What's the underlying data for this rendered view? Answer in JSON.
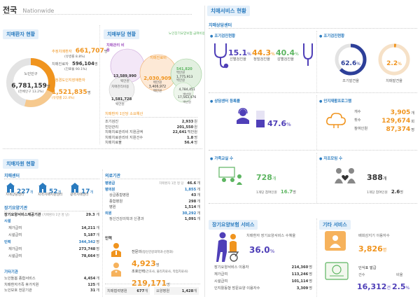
{
  "title": {
    "main": "전국",
    "sub": "Nationwide"
  },
  "patients": {
    "header": "치매환자 현황",
    "est_label": "추정치매환자",
    "est_value": "661,707",
    "est_unit": "명",
    "est_rate": "(유병률 8.8%)",
    "treat_label": "치매진료자",
    "treat_value": "596,104",
    "treat_unit": "명",
    "treat_rate": "(진료율 90.1%)",
    "elderly_label": "노인인구",
    "elderly_value": "6,781,159",
    "elderly_unit": "명",
    "elderly_rate": "(전체인구 13.2%)",
    "mci_label": "추정경도인지장애환자",
    "mci_value": "1,521,835",
    "mci_unit": "명",
    "mci_rate": "(유병률 22.4%)"
  },
  "burden": {
    "header": "치매부담 현황",
    "mgmt_label": "치매관리 비용",
    "mgmt_value": "13,589,990",
    "mgmt_unit": "백만원",
    "care_label": "치매관리비용",
    "care_value": "1,581,728",
    "care_unit": "백만원",
    "med_label": "치매진료비",
    "med_value": "2,030,909",
    "med_unit": "백만원",
    "med2_value": "3,406,972",
    "med2_unit": "백만원",
    "ltc_label": "노인장기요양보험 급여비용",
    "ltc_value": "541,820",
    "ltc_unit": "백만원",
    "ltc2_value": "1,775,913",
    "ltc2_unit": "백만원",
    "other_value": "4,784,451",
    "other_unit": "백만원",
    "other2_value": "17,563,476",
    "other2_unit": "백만원",
    "per_head_title": "치매환자 1인당 소요예산",
    "rows": [
      {
        "label": "조기검진",
        "value": "2,933",
        "unit": "원"
      },
      {
        "label": "진단관리",
        "value": "201,550",
        "unit": "원"
      },
      {
        "label": "치매치료관리비 지원금액",
        "value": "22,641",
        "unit": "백만원"
      },
      {
        "label": "치매치료관리비 지원건수",
        "value": "1.8",
        "unit": "명"
      },
      {
        "label": "치매치료불",
        "value": "56.4",
        "unit": "명"
      }
    ]
  },
  "resources": {
    "header": "치매자원 현황",
    "center_title": "치매센터",
    "centers": [
      {
        "value": "227",
        "unit": "개",
        "label": "치매상담센터"
      },
      {
        "value": "52",
        "unit": "개",
        "label": "지역치매지원센터"
      },
      {
        "value": "17",
        "unit": "개",
        "label": "광역치매센터"
      }
    ],
    "ltc_title": "장기요양기관",
    "ltc_total_label": "장기요양서비스제공기관",
    "ltc_total_note": "(치매환자 1만 명 당)",
    "ltc_total_value": "29.3",
    "ltc_total_unit": "개",
    "ltc_rows": [
      {
        "label": "시설",
        "value": "",
        "unit": "",
        "head": true
      },
      {
        "label": "재가급여",
        "value": "14,211",
        "unit": "개"
      },
      {
        "label": "시설급여",
        "value": "5,187",
        "unit": "개"
      },
      {
        "label": "인력",
        "value": "344,342",
        "unit": "명",
        "head": true
      },
      {
        "label": "재가급여",
        "value": "273,748",
        "unit": "명"
      },
      {
        "label": "시설급여",
        "value": "78,664",
        "unit": "명"
      }
    ],
    "other_title": "기타기관",
    "other_rows": [
      {
        "label": "노인돌봄 종합서비스",
        "value": "4,454",
        "unit": "개"
      },
      {
        "label": "치매환자가족 휴가지원",
        "value": "125",
        "unit": "개"
      },
      {
        "label": "노인보호 전문기관",
        "value": "31",
        "unit": "개"
      }
    ]
  },
  "medical": {
    "title": "의료기관",
    "rows": [
      {
        "label": "병원급",
        "value": "",
        "unit": "",
        "note": "치매환자 1천 명 당",
        "value2": "46.6",
        "unit2": "개",
        "head": true
      },
      {
        "label": "병의원",
        "value": "1,855",
        "unit": "개",
        "head": true
      },
      {
        "label": "상급종합병원",
        "value": "43",
        "unit": "개"
      },
      {
        "label": "종합병원",
        "value": "298",
        "unit": "개"
      },
      {
        "label": "병원",
        "value": "1,514",
        "unit": "개"
      },
      {
        "label": "의원",
        "value": "30,292",
        "unit": "개",
        "head": true
      },
      {
        "label": "정신건강의학과 신경과",
        "value": "1,091",
        "unit": "개"
      }
    ],
    "staff_title": "인력",
    "spec_label": "전문의",
    "spec_note": "(정신건강의학과·신경과)",
    "spec_value": "4,923",
    "spec_unit": "명",
    "helper_label": "조호인력",
    "helper_note": "(간호사, 물리치료사, 작업치료사)",
    "helper_value": "219,171",
    "helper_unit": "명",
    "bottom": [
      {
        "label": "치매협력병원",
        "value": "677",
        "unit": "개"
      },
      {
        "label": "요양병원",
        "value": "1,428",
        "unit": "개"
      }
    ]
  },
  "services": {
    "header": "치매서비스 현황",
    "counsel_title": "치매상담센터",
    "screen": {
      "title": "조기검진현황",
      "items": [
        {
          "value": "15.1",
          "unit": "%",
          "label": "선별검진율"
        },
        {
          "value": "44.3",
          "unit": "%",
          "label": "정밀검진율"
        },
        {
          "value": "40.4",
          "unit": "%",
          "label": "감별검진율"
        }
      ]
    },
    "early": {
      "title": "조기검진현황",
      "rate1_value": "62.6",
      "rate1_unit": "%",
      "rate1_label": "조기발견율",
      "rate1_pct": 62.6,
      "rate2_value": "2.2",
      "rate2_unit": "%",
      "rate2_label": "치매발견율",
      "rate2_pct": 2.2
    },
    "register": {
      "title": "상담센터 등록률",
      "value": "47.6",
      "unit": "%"
    },
    "rehab": {
      "title": "인지재활프로그램",
      "rows": [
        {
          "label": "개수",
          "value": "3,905",
          "unit": "개"
        },
        {
          "label": "횟수",
          "value": "129,674",
          "unit": "회"
        },
        {
          "label": "참여인원",
          "value": "87,374",
          "unit": "명"
        }
      ]
    },
    "family": {
      "title": "가족교실 수",
      "value": "728",
      "unit": "개",
      "note": "1개당 참여인원",
      "note_value": "16.7",
      "note_unit": "명"
    },
    "selfhelp": {
      "title": "자조모임 수",
      "value": "388",
      "unit": "개",
      "note": "1개당 참여인원",
      "note_value": "2.6",
      "note_unit": "명"
    },
    "ltc": {
      "header": "장기요양보험 서비스",
      "rate_label": "치매환자 장기요양서비스 수혜율",
      "rate_value": "36.0",
      "rate_unit": "%",
      "rows": [
        {
          "label": "장기요양서비스 이용자",
          "value": "214,360",
          "unit": "명"
        },
        {
          "label": "재가급여",
          "value": "113,246",
          "unit": "명"
        },
        {
          "label": "시설급여",
          "value": "101,114",
          "unit": "명"
        },
        {
          "label": "인지활동형 방문요양 이용자수",
          "value": "3,309",
          "unit": "명"
        }
      ]
    },
    "other": {
      "header": "기타 서비스",
      "wander_label": "배회감지기 이용자수",
      "wander_value": "3,826",
      "wander_unit": "명",
      "id_label": "인식표 발급",
      "id_count_label": "건수",
      "id_count_value": "16,312",
      "id_count_unit": "건",
      "id_rate_label": "비율",
      "id_rate_value": "2.5",
      "id_rate_unit": "%"
    }
  },
  "colors": {
    "blue": "#2a7bbf",
    "orange": "#f0941e",
    "green": "#5db561",
    "purple": "#4f3fb8",
    "navy": "#2d3f99"
  }
}
